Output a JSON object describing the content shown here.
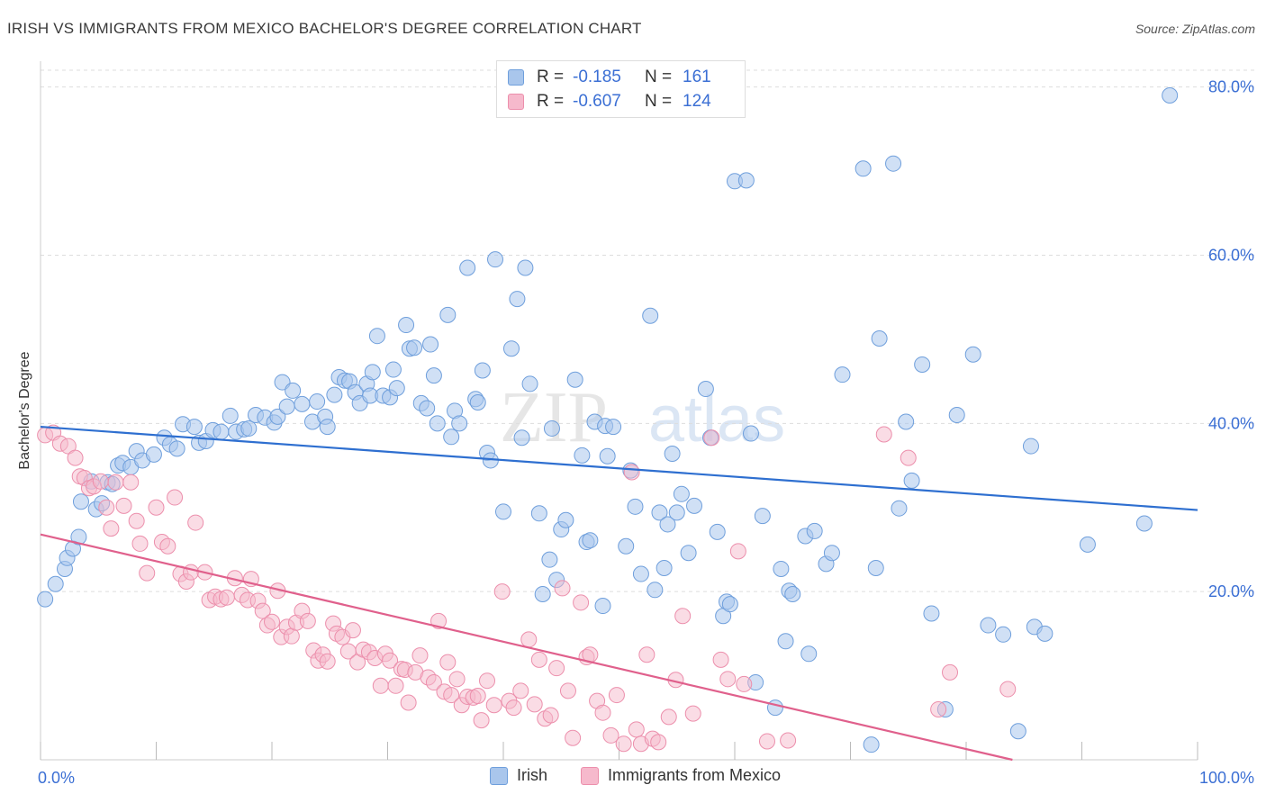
{
  "title": "IRISH VS IMMIGRANTS FROM MEXICO BACHELOR'S DEGREE CORRELATION CHART",
  "source": "Source: ZipAtlas.com",
  "watermark": {
    "zip": "ZIP",
    "atlas": "atlas"
  },
  "legend": {
    "rows": [
      {
        "r_label": "R =",
        "r_value": "-0.185",
        "n_label": "N =",
        "n_value": "161"
      },
      {
        "r_label": "R =",
        "r_value": "-0.607",
        "n_label": "N =",
        "n_value": "124"
      }
    ]
  },
  "bottom_legend": {
    "irish": "Irish",
    "mexico": "Immigrants from Mexico"
  },
  "colors": {
    "irish_fill": "#a9c6ec",
    "irish_stroke": "#6f9fdc",
    "irish_line": "#2e6fd0",
    "mexico_fill": "#f6b9cc",
    "mexico_stroke": "#ec8fac",
    "mexico_line": "#e0608c",
    "tick_label": "#3b6fd4",
    "grid": "#dddddd"
  },
  "chart_data": {
    "type": "scatter",
    "ylabel": "Bachelor's Degree",
    "xlabel": "",
    "xlim": [
      0,
      100
    ],
    "ylim": [
      0,
      82
    ],
    "x_tick_labels": [
      "0.0%",
      "100.0%"
    ],
    "y_ticks": [
      20,
      40,
      60,
      80
    ],
    "y_tick_labels": [
      "20.0%",
      "40.0%",
      "60.0%",
      "80.0%"
    ],
    "grid": "horizontal dashed",
    "series": [
      {
        "name": "Irish",
        "r": -0.185,
        "n": 161,
        "trend": [
          [
            0,
            39.6
          ],
          [
            100,
            29.7
          ]
        ],
        "points": [
          [
            0.4,
            19.1
          ],
          [
            1.3,
            20.9
          ],
          [
            2.1,
            22.7
          ],
          [
            2.3,
            24.0
          ],
          [
            2.8,
            25.1
          ],
          [
            3.3,
            26.5
          ],
          [
            3.5,
            30.7
          ],
          [
            4.4,
            33.1
          ],
          [
            4.8,
            29.8
          ],
          [
            5.3,
            30.5
          ],
          [
            5.8,
            33.0
          ],
          [
            6.2,
            32.8
          ],
          [
            6.7,
            35.0
          ],
          [
            7.1,
            35.3
          ],
          [
            7.8,
            34.8
          ],
          [
            8.3,
            36.7
          ],
          [
            8.8,
            35.6
          ],
          [
            9.8,
            36.3
          ],
          [
            10.7,
            38.3
          ],
          [
            11.2,
            37.5
          ],
          [
            11.8,
            37.0
          ],
          [
            12.3,
            39.9
          ],
          [
            13.3,
            39.6
          ],
          [
            13.7,
            37.7
          ],
          [
            14.3,
            37.9
          ],
          [
            14.9,
            39.2
          ],
          [
            15.6,
            39.0
          ],
          [
            16.4,
            40.9
          ],
          [
            16.9,
            39.0
          ],
          [
            17.6,
            39.3
          ],
          [
            18.0,
            39.4
          ],
          [
            18.6,
            41.0
          ],
          [
            19.4,
            40.7
          ],
          [
            20.2,
            40.1
          ],
          [
            20.5,
            40.8
          ],
          [
            20.9,
            44.9
          ],
          [
            21.3,
            42.0
          ],
          [
            21.8,
            43.9
          ],
          [
            22.6,
            42.3
          ],
          [
            23.5,
            40.2
          ],
          [
            23.9,
            42.6
          ],
          [
            24.6,
            40.8
          ],
          [
            24.8,
            39.6
          ],
          [
            25.4,
            43.4
          ],
          [
            25.8,
            45.5
          ],
          [
            26.3,
            45.1
          ],
          [
            26.7,
            45.0
          ],
          [
            27.2,
            43.7
          ],
          [
            27.6,
            42.4
          ],
          [
            28.2,
            44.7
          ],
          [
            28.5,
            43.3
          ],
          [
            28.7,
            46.1
          ],
          [
            29.1,
            50.4
          ],
          [
            29.6,
            43.3
          ],
          [
            30.2,
            43.1
          ],
          [
            30.5,
            46.4
          ],
          [
            30.8,
            44.2
          ],
          [
            31.6,
            51.7
          ],
          [
            31.9,
            48.9
          ],
          [
            32.3,
            49.0
          ],
          [
            32.9,
            42.4
          ],
          [
            33.4,
            41.8
          ],
          [
            33.7,
            49.4
          ],
          [
            34.0,
            45.7
          ],
          [
            34.3,
            40.0
          ],
          [
            35.2,
            52.9
          ],
          [
            35.5,
            38.4
          ],
          [
            35.8,
            41.5
          ],
          [
            36.2,
            40.0
          ],
          [
            36.9,
            58.5
          ],
          [
            37.6,
            42.9
          ],
          [
            37.8,
            42.5
          ],
          [
            38.2,
            46.3
          ],
          [
            38.6,
            36.5
          ],
          [
            38.9,
            35.6
          ],
          [
            39.3,
            59.5
          ],
          [
            40.0,
            29.5
          ],
          [
            40.7,
            48.9
          ],
          [
            41.2,
            54.8
          ],
          [
            41.6,
            38.3
          ],
          [
            41.9,
            58.5
          ],
          [
            42.3,
            44.7
          ],
          [
            43.1,
            29.3
          ],
          [
            43.4,
            19.7
          ],
          [
            44.0,
            23.8
          ],
          [
            44.2,
            39.4
          ],
          [
            44.6,
            21.4
          ],
          [
            45.0,
            27.4
          ],
          [
            45.4,
            28.5
          ],
          [
            46.2,
            45.2
          ],
          [
            46.8,
            36.2
          ],
          [
            47.2,
            25.9
          ],
          [
            47.5,
            26.1
          ],
          [
            47.9,
            40.2
          ],
          [
            48.6,
            18.3
          ],
          [
            48.8,
            39.7
          ],
          [
            49.0,
            36.1
          ],
          [
            49.5,
            39.6
          ],
          [
            50.6,
            25.4
          ],
          [
            51.0,
            34.4
          ],
          [
            51.4,
            30.1
          ],
          [
            51.9,
            22.1
          ],
          [
            52.7,
            52.8
          ],
          [
            53.1,
            20.2
          ],
          [
            53.5,
            29.4
          ],
          [
            53.9,
            22.8
          ],
          [
            54.2,
            28.0
          ],
          [
            54.6,
            36.4
          ],
          [
            55.0,
            29.4
          ],
          [
            55.4,
            31.6
          ],
          [
            56.0,
            24.6
          ],
          [
            56.5,
            30.2
          ],
          [
            57.5,
            44.1
          ],
          [
            57.9,
            38.3
          ],
          [
            58.5,
            27.1
          ],
          [
            59.0,
            17.1
          ],
          [
            59.3,
            18.8
          ],
          [
            59.6,
            18.5
          ],
          [
            60.0,
            68.8
          ],
          [
            61.0,
            68.9
          ],
          [
            61.4,
            38.8
          ],
          [
            61.8,
            9.2
          ],
          [
            62.4,
            29.0
          ],
          [
            63.5,
            6.2
          ],
          [
            64.0,
            22.7
          ],
          [
            64.4,
            14.1
          ],
          [
            64.7,
            20.1
          ],
          [
            65.0,
            19.7
          ],
          [
            66.1,
            26.6
          ],
          [
            66.4,
            12.6
          ],
          [
            66.9,
            27.2
          ],
          [
            67.9,
            23.3
          ],
          [
            68.4,
            24.6
          ],
          [
            69.3,
            45.8
          ],
          [
            71.1,
            70.3
          ],
          [
            71.8,
            1.8
          ],
          [
            72.2,
            22.8
          ],
          [
            72.5,
            50.1
          ],
          [
            73.7,
            70.9
          ],
          [
            74.2,
            29.9
          ],
          [
            74.8,
            40.2
          ],
          [
            75.3,
            33.2
          ],
          [
            76.2,
            47.0
          ],
          [
            77.0,
            17.4
          ],
          [
            78.2,
            6.0
          ],
          [
            79.2,
            41.0
          ],
          [
            80.6,
            48.2
          ],
          [
            81.9,
            16.0
          ],
          [
            83.2,
            14.9
          ],
          [
            84.5,
            3.4
          ],
          [
            85.6,
            37.3
          ],
          [
            85.9,
            15.8
          ],
          [
            86.8,
            15.0
          ],
          [
            90.5,
            25.6
          ],
          [
            95.4,
            28.1
          ],
          [
            97.6,
            79.0
          ]
        ]
      },
      {
        "name": "Immigrants from Mexico",
        "r": -0.607,
        "n": 124,
        "trend": [
          [
            0,
            26.8
          ],
          [
            84,
            0
          ]
        ],
        "points": [
          [
            0.4,
            38.6
          ],
          [
            1.1,
            38.9
          ],
          [
            1.7,
            37.6
          ],
          [
            2.4,
            37.3
          ],
          [
            3.0,
            35.9
          ],
          [
            3.4,
            33.7
          ],
          [
            3.8,
            33.5
          ],
          [
            4.2,
            32.3
          ],
          [
            4.6,
            32.5
          ],
          [
            5.2,
            33.1
          ],
          [
            5.7,
            30.0
          ],
          [
            6.1,
            27.5
          ],
          [
            6.5,
            33.0
          ],
          [
            7.2,
            30.2
          ],
          [
            7.8,
            33.0
          ],
          [
            8.3,
            28.4
          ],
          [
            8.6,
            25.7
          ],
          [
            9.2,
            22.2
          ],
          [
            10.0,
            30.0
          ],
          [
            10.5,
            25.9
          ],
          [
            11.0,
            25.4
          ],
          [
            11.6,
            31.2
          ],
          [
            12.1,
            22.1
          ],
          [
            12.6,
            21.2
          ],
          [
            13.0,
            22.3
          ],
          [
            13.4,
            28.2
          ],
          [
            14.2,
            22.3
          ],
          [
            14.6,
            19.0
          ],
          [
            15.1,
            19.4
          ],
          [
            15.6,
            19.1
          ],
          [
            16.1,
            19.3
          ],
          [
            16.8,
            21.6
          ],
          [
            17.4,
            19.6
          ],
          [
            17.9,
            19.0
          ],
          [
            18.2,
            21.5
          ],
          [
            18.8,
            18.9
          ],
          [
            19.2,
            17.7
          ],
          [
            19.6,
            16.0
          ],
          [
            20.0,
            16.4
          ],
          [
            20.5,
            20.1
          ],
          [
            20.8,
            14.6
          ],
          [
            21.3,
            15.8
          ],
          [
            21.7,
            14.7
          ],
          [
            22.1,
            16.3
          ],
          [
            22.6,
            17.7
          ],
          [
            23.1,
            16.5
          ],
          [
            23.6,
            13.0
          ],
          [
            24.0,
            11.8
          ],
          [
            24.4,
            12.5
          ],
          [
            24.8,
            11.7
          ],
          [
            25.3,
            16.2
          ],
          [
            25.6,
            15.0
          ],
          [
            26.1,
            14.6
          ],
          [
            26.6,
            12.9
          ],
          [
            27.0,
            15.4
          ],
          [
            27.4,
            11.6
          ],
          [
            27.9,
            13.1
          ],
          [
            28.4,
            12.8
          ],
          [
            28.9,
            12.1
          ],
          [
            29.4,
            8.8
          ],
          [
            29.8,
            12.6
          ],
          [
            30.2,
            11.8
          ],
          [
            30.7,
            8.8
          ],
          [
            31.2,
            10.8
          ],
          [
            31.5,
            10.7
          ],
          [
            31.8,
            6.8
          ],
          [
            32.4,
            10.4
          ],
          [
            32.8,
            12.4
          ],
          [
            33.5,
            9.8
          ],
          [
            34.0,
            9.2
          ],
          [
            34.4,
            16.5
          ],
          [
            34.9,
            8.1
          ],
          [
            35.2,
            11.6
          ],
          [
            35.5,
            7.7
          ],
          [
            36.0,
            9.6
          ],
          [
            36.4,
            6.5
          ],
          [
            36.9,
            7.5
          ],
          [
            37.4,
            7.4
          ],
          [
            37.8,
            7.6
          ],
          [
            38.1,
            4.7
          ],
          [
            38.6,
            9.4
          ],
          [
            39.2,
            6.5
          ],
          [
            39.9,
            20.0
          ],
          [
            40.5,
            7.0
          ],
          [
            40.9,
            6.2
          ],
          [
            41.5,
            8.2
          ],
          [
            42.2,
            14.3
          ],
          [
            42.7,
            6.6
          ],
          [
            43.1,
            11.9
          ],
          [
            43.6,
            4.9
          ],
          [
            44.1,
            5.3
          ],
          [
            44.6,
            10.9
          ],
          [
            45.1,
            20.4
          ],
          [
            45.6,
            8.2
          ],
          [
            46.0,
            2.6
          ],
          [
            46.7,
            18.7
          ],
          [
            47.2,
            12.2
          ],
          [
            47.5,
            12.5
          ],
          [
            48.1,
            7.0
          ],
          [
            48.6,
            5.6
          ],
          [
            49.3,
            2.9
          ],
          [
            49.8,
            7.7
          ],
          [
            50.4,
            1.9
          ],
          [
            51.1,
            34.2
          ],
          [
            51.5,
            3.6
          ],
          [
            51.9,
            1.9
          ],
          [
            52.4,
            12.5
          ],
          [
            52.9,
            2.5
          ],
          [
            53.4,
            2.1
          ],
          [
            54.3,
            5.1
          ],
          [
            54.9,
            9.5
          ],
          [
            55.5,
            17.1
          ],
          [
            56.4,
            5.5
          ],
          [
            58.0,
            38.3
          ],
          [
            58.8,
            11.9
          ],
          [
            59.4,
            9.6
          ],
          [
            60.3,
            24.8
          ],
          [
            60.8,
            9.0
          ],
          [
            62.8,
            2.2
          ],
          [
            64.6,
            2.3
          ],
          [
            72.9,
            38.7
          ],
          [
            75.0,
            35.9
          ],
          [
            77.6,
            6.0
          ],
          [
            78.6,
            10.4
          ],
          [
            83.6,
            8.4
          ]
        ]
      }
    ]
  }
}
